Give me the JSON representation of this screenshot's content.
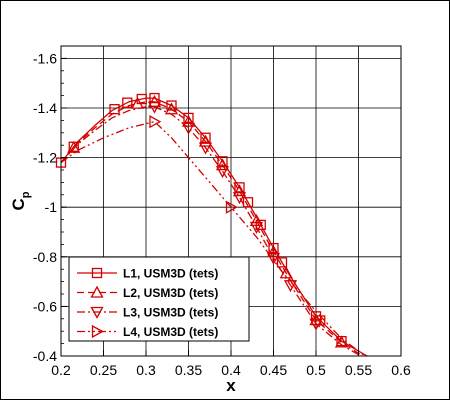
{
  "chart_data": {
    "type": "line",
    "title": "",
    "xlabel": "x",
    "ylabel_main": "C",
    "ylabel_sub": "p",
    "xlim": [
      0.2,
      0.6
    ],
    "ylim": [
      -0.4,
      -1.65
    ],
    "y_axis_inverted": true,
    "grid": true,
    "legend_position": "bottom-left",
    "x_ticks": [
      0.2,
      0.25,
      0.3,
      0.35,
      0.4,
      0.45,
      0.5,
      0.55,
      0.6
    ],
    "x_tick_labels": [
      "0.2",
      "0.25",
      "0.3",
      "0.35",
      "0.4",
      "0.45",
      "0.5",
      "0.55",
      "0.6"
    ],
    "y_ticks": [
      -0.4,
      -0.6,
      -0.8,
      -1.0,
      -1.2,
      -1.4,
      -1.6
    ],
    "y_tick_labels": [
      "-0.4",
      "-0.6",
      "-0.8",
      "-1",
      "-1.2",
      "-1.4",
      "-1.6"
    ],
    "color": "#d40000",
    "series": [
      {
        "name": "L1, USM3D (tets)",
        "line_style": "solid",
        "marker": "square",
        "x": [
          0.2,
          0.22,
          0.24,
          0.26,
          0.28,
          0.3,
          0.31,
          0.33,
          0.35,
          0.37,
          0.39,
          0.41,
          0.43,
          0.45,
          0.47,
          0.5,
          0.53,
          0.555,
          0.57
        ],
        "y": [
          -1.18,
          -1.265,
          -1.33,
          -1.39,
          -1.425,
          -1.44,
          -1.44,
          -1.41,
          -1.36,
          -1.28,
          -1.185,
          -1.08,
          -0.96,
          -0.835,
          -0.72,
          -0.56,
          -0.46,
          -0.41,
          -0.38
        ],
        "markers_x": [
          0.2,
          0.215,
          0.263,
          0.278,
          0.295,
          0.31,
          0.33,
          0.35,
          0.37,
          0.39,
          0.41,
          0.42,
          0.435,
          0.45,
          0.46,
          0.5,
          0.505,
          0.53
        ]
      },
      {
        "name": "L2, USM3D (tets)",
        "line_style": "dashed",
        "marker": "triangle-up",
        "x": [
          0.2,
          0.22,
          0.24,
          0.26,
          0.28,
          0.3,
          0.31,
          0.33,
          0.35,
          0.37,
          0.39,
          0.41,
          0.43,
          0.45,
          0.47,
          0.5,
          0.53,
          0.555,
          0.57
        ],
        "y": [
          -1.18,
          -1.26,
          -1.32,
          -1.375,
          -1.41,
          -1.425,
          -1.425,
          -1.395,
          -1.345,
          -1.265,
          -1.17,
          -1.065,
          -0.945,
          -0.82,
          -0.705,
          -0.545,
          -0.455,
          -0.4,
          -0.37
        ],
        "markers_x": [
          0.215,
          0.29,
          0.31,
          0.33,
          0.35,
          0.37,
          0.39,
          0.41,
          0.43,
          0.45,
          0.465,
          0.5,
          0.53
        ]
      },
      {
        "name": "L3, USM3D (tets)",
        "line_style": "dashdot",
        "marker": "triangle-down",
        "x": [
          0.2,
          0.22,
          0.24,
          0.26,
          0.28,
          0.3,
          0.31,
          0.33,
          0.35,
          0.37,
          0.39,
          0.41,
          0.43,
          0.45,
          0.47,
          0.5,
          0.53,
          0.555,
          0.57
        ],
        "y": [
          -1.18,
          -1.255,
          -1.31,
          -1.36,
          -1.39,
          -1.405,
          -1.405,
          -1.375,
          -1.32,
          -1.24,
          -1.145,
          -1.04,
          -0.92,
          -0.795,
          -0.685,
          -0.53,
          -0.445,
          -0.395,
          -0.365
        ],
        "markers_x": [
          0.31,
          0.35,
          0.37,
          0.39,
          0.41,
          0.43,
          0.45,
          0.47,
          0.5
        ]
      },
      {
        "name": "L4, USM3D (tets)",
        "line_style": "dashdotdot",
        "marker": "triangle-right",
        "x": [
          0.2,
          0.22,
          0.25,
          0.28,
          0.31,
          0.33,
          0.36,
          0.4,
          0.43,
          0.46,
          0.5,
          0.53,
          0.55,
          0.565
        ],
        "y": [
          -1.18,
          -1.23,
          -1.28,
          -1.32,
          -1.345,
          -1.28,
          -1.16,
          -1.0,
          -0.88,
          -0.74,
          -0.58,
          -0.47,
          -0.42,
          -0.38
        ],
        "markers_x": [
          0.31,
          0.4
        ]
      }
    ]
  }
}
